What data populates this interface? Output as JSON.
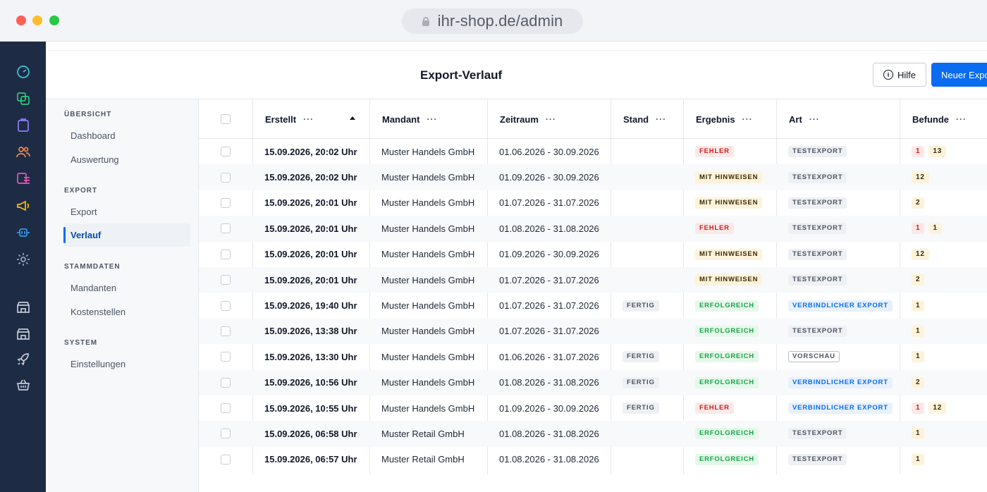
{
  "browser": {
    "url": "ihr-shop.de/admin"
  },
  "rail_icons": [
    "dashboard-icon",
    "copy-icon",
    "clipboard-icon",
    "users-icon",
    "list-icon",
    "megaphone-icon",
    "plug-icon",
    "gear-icon",
    "store-icon",
    "store-icon-2",
    "rocket-icon",
    "basket-icon"
  ],
  "header": {
    "title": "Export-Verlauf",
    "help_label": "Hilfe",
    "new_label": "Neuer Export"
  },
  "sidebar": {
    "sections": [
      {
        "title": "ÜBERSICHT",
        "items": [
          "Dashboard",
          "Auswertung"
        ]
      },
      {
        "title": "EXPORT",
        "items": [
          "Export",
          "Verlauf"
        ]
      },
      {
        "title": "STAMMDATEN",
        "items": [
          "Mandanten",
          "Kostenstellen"
        ]
      },
      {
        "title": "SYSTEM",
        "items": [
          "Einstellungen"
        ]
      }
    ],
    "active": "Verlauf"
  },
  "table": {
    "columns": [
      "Erstellt",
      "Mandant",
      "Zeitraum",
      "Stand",
      "Ergebnis",
      "Art",
      "Befunde"
    ],
    "column_menu": "···",
    "rows": [
      {
        "erstellt": "15.09.2026, 20:02 Uhr",
        "mandant": "Muster Handels GmbH",
        "zeitraum": "01.06.2026 - 30.09.2026",
        "stand": "",
        "ergebnis": "FEHLER",
        "art": "TESTEXPORT",
        "befunde": [
          "1",
          "13"
        ]
      },
      {
        "erstellt": "15.09.2026, 20:02 Uhr",
        "mandant": "Muster Handels GmbH",
        "zeitraum": "01.09.2026 - 30.09.2026",
        "stand": "",
        "ergebnis": "MIT HINWEISEN",
        "art": "TESTEXPORT",
        "befunde": [
          "12"
        ]
      },
      {
        "erstellt": "15.09.2026, 20:01 Uhr",
        "mandant": "Muster Handels GmbH",
        "zeitraum": "01.07.2026 - 31.07.2026",
        "stand": "",
        "ergebnis": "MIT HINWEISEN",
        "art": "TESTEXPORT",
        "befunde": [
          "2"
        ]
      },
      {
        "erstellt": "15.09.2026, 20:01 Uhr",
        "mandant": "Muster Handels GmbH",
        "zeitraum": "01.08.2026 - 31.08.2026",
        "stand": "",
        "ergebnis": "FEHLER",
        "art": "TESTEXPORT",
        "befunde": [
          "1",
          "1"
        ]
      },
      {
        "erstellt": "15.09.2026, 20:01 Uhr",
        "mandant": "Muster Handels GmbH",
        "zeitraum": "01.09.2026 - 30.09.2026",
        "stand": "",
        "ergebnis": "MIT HINWEISEN",
        "art": "TESTEXPORT",
        "befunde": [
          "12"
        ]
      },
      {
        "erstellt": "15.09.2026, 20:01 Uhr",
        "mandant": "Muster Handels GmbH",
        "zeitraum": "01.07.2026 - 31.07.2026",
        "stand": "",
        "ergebnis": "MIT HINWEISEN",
        "art": "TESTEXPORT",
        "befunde": [
          "2"
        ]
      },
      {
        "erstellt": "15.09.2026, 19:40 Uhr",
        "mandant": "Muster Handels GmbH",
        "zeitraum": "01.07.2026 - 31.07.2026",
        "stand": "FERTIG",
        "ergebnis": "ERFOLGREICH",
        "art": "VERBINDLICHER EXPORT",
        "befunde": [
          "1"
        ]
      },
      {
        "erstellt": "15.09.2026, 13:38 Uhr",
        "mandant": "Muster Handels GmbH",
        "zeitraum": "01.07.2026 - 31.07.2026",
        "stand": "",
        "ergebnis": "ERFOLGREICH",
        "art": "TESTEXPORT",
        "befunde": [
          "1"
        ]
      },
      {
        "erstellt": "15.09.2026, 13:30 Uhr",
        "mandant": "Muster Handels GmbH",
        "zeitraum": "01.06.2026 - 31.07.2026",
        "stand": "FERTIG",
        "ergebnis": "ERFOLGREICH",
        "art": "VORSCHAU",
        "befunde": [
          "1"
        ]
      },
      {
        "erstellt": "15.09.2026, 10:56 Uhr",
        "mandant": "Muster Handels GmbH",
        "zeitraum": "01.08.2026 - 31.08.2026",
        "stand": "FERTIG",
        "ergebnis": "ERFOLGREICH",
        "art": "VERBINDLICHER EXPORT",
        "befunde": [
          "2"
        ]
      },
      {
        "erstellt": "15.09.2026, 10:55 Uhr",
        "mandant": "Muster Handels GmbH",
        "zeitraum": "01.09.2026 - 30.09.2026",
        "stand": "FERTIG",
        "ergebnis": "FEHLER",
        "art": "VERBINDLICHER EXPORT",
        "befunde": [
          "1",
          "12"
        ]
      },
      {
        "erstellt": "15.09.2026, 06:58 Uhr",
        "mandant": "Muster Retail GmbH",
        "zeitraum": "01.08.2026 - 31.08.2026",
        "stand": "",
        "ergebnis": "ERFOLGREICH",
        "art": "TESTEXPORT",
        "befunde": [
          "1"
        ]
      },
      {
        "erstellt": "15.09.2026, 06:57 Uhr",
        "mandant": "Muster Retail GmbH",
        "zeitraum": "01.08.2026 - 31.08.2026",
        "stand": "",
        "ergebnis": "ERFOLGREICH",
        "art": "TESTEXPORT",
        "befunde": [
          "1"
        ]
      }
    ]
  }
}
